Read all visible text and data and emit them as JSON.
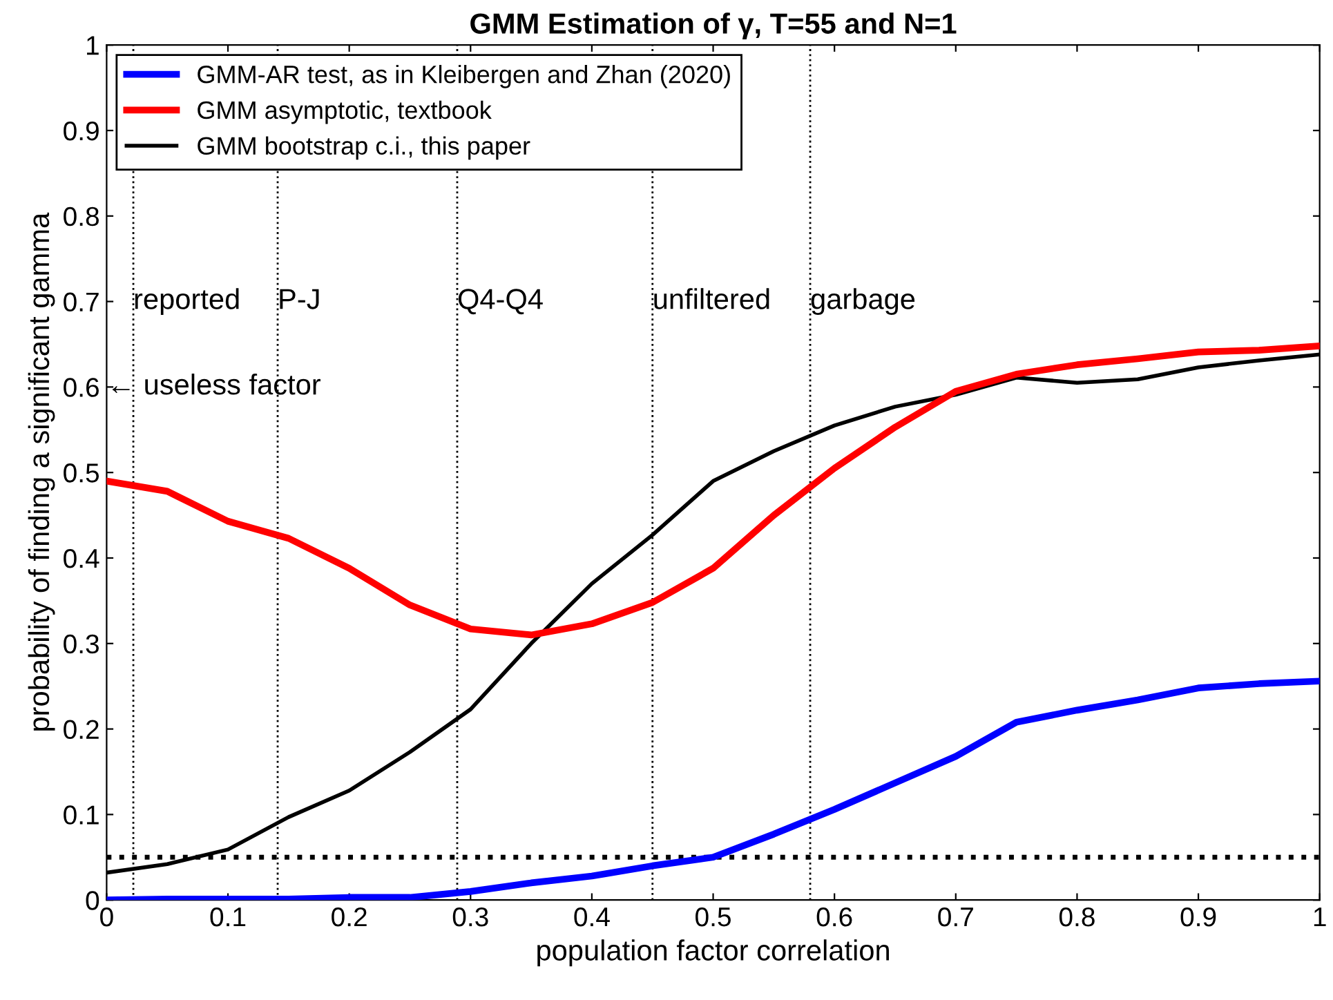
{
  "chart_data": {
    "type": "line",
    "title": "GMM Estimation of γ, T=55 and N=1",
    "xlabel": "population factor correlation",
    "ylabel": "probability of finding a significant gamma",
    "x": [
      0,
      0.05,
      0.1,
      0.15,
      0.2,
      0.25,
      0.3,
      0.35,
      0.4,
      0.45,
      0.5,
      0.55,
      0.6,
      0.65,
      0.7,
      0.75,
      0.8,
      0.85,
      0.9,
      0.95,
      1
    ],
    "series": [
      {
        "name": "GMM-AR test, as in Kleibergen and Zhan (2020)",
        "color": "#0000ff",
        "values": [
          0,
          0.001,
          0.001,
          0.001,
          0.003,
          0.003,
          0.01,
          0.02,
          0.028,
          0.04,
          0.05,
          0.077,
          0.106,
          0.137,
          0.168,
          0.208,
          0.222,
          0.234,
          0.248,
          0.253,
          0.256
        ]
      },
      {
        "name": "GMM asymptotic, textbook",
        "color": "#ff0000",
        "values": [
          0.49,
          0.478,
          0.443,
          0.423,
          0.388,
          0.345,
          0.317,
          0.31,
          0.323,
          0.348,
          0.388,
          0.45,
          0.505,
          0.553,
          0.595,
          0.615,
          0.626,
          0.633,
          0.641,
          0.643,
          0.648
        ]
      },
      {
        "name": "GMM bootstrap c.i., this paper",
        "color": "#000000",
        "values": [
          0.032,
          0.042,
          0.059,
          0.097,
          0.128,
          0.173,
          0.223,
          0.3,
          0.37,
          0.427,
          0.49,
          0.525,
          0.555,
          0.577,
          0.591,
          0.611,
          0.605,
          0.609,
          0.623,
          0.631,
          0.638
        ]
      }
    ],
    "xlim": [
      0,
      1
    ],
    "xticks": [
      0,
      0.1,
      0.2,
      0.3,
      0.4,
      0.5,
      0.6,
      0.7,
      0.8,
      0.9,
      1
    ],
    "ylim": [
      0,
      1
    ],
    "yticks": [
      0,
      0.1,
      0.2,
      0.3,
      0.4,
      0.5,
      0.6,
      0.7,
      0.8,
      0.9,
      1
    ],
    "ref_lines": [
      {
        "axis": "x",
        "value": 0.022,
        "label": "reported",
        "line_style": "dotted",
        "color": "#000000"
      },
      {
        "axis": "x",
        "value": 0.141,
        "label": "P-J",
        "line_style": "dotted",
        "color": "#000000"
      },
      {
        "axis": "x",
        "value": 0.289,
        "label": "Q4-Q4",
        "line_style": "dotted",
        "color": "#000000"
      },
      {
        "axis": "x",
        "value": 0.45,
        "label": "unfiltered",
        "line_style": "dotted",
        "color": "#000000"
      },
      {
        "axis": "x",
        "value": 0.58,
        "label": "garbage",
        "line_style": "dotted",
        "color": "#000000"
      },
      {
        "axis": "y",
        "value": 0.05,
        "line_style": "dotted",
        "color": "#000000"
      }
    ],
    "annotations": [
      "← useless factor"
    ],
    "legend": "top left",
    "grid": false,
    "marker": "none",
    "line_style": "solid"
  }
}
